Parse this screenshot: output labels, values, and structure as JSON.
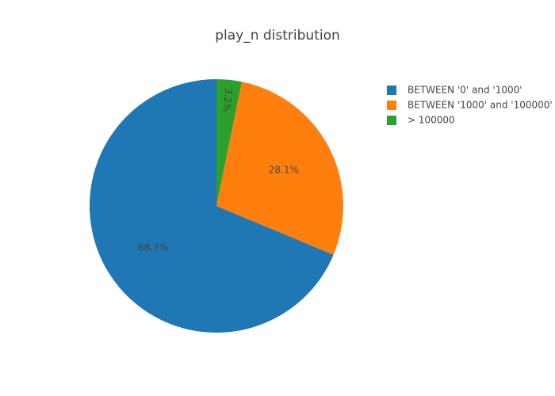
{
  "chart_data": {
    "type": "pie",
    "title": "play_n distribution",
    "slices": [
      {
        "label": "BETWEEN '0' and '1000'",
        "value": 68.7,
        "display": "68.7%",
        "color": "#1f77b4"
      },
      {
        "label": "BETWEEN '1000' and '100000'",
        "value": 28.1,
        "display": "28.1%",
        "color": "#ff7f0e"
      },
      {
        "label": "> 100000",
        "value": 3.2,
        "display": "3.2%",
        "color": "#2ca02c"
      }
    ],
    "legend_position": "top-right",
    "direction": "counterclockwise",
    "start": "top"
  }
}
